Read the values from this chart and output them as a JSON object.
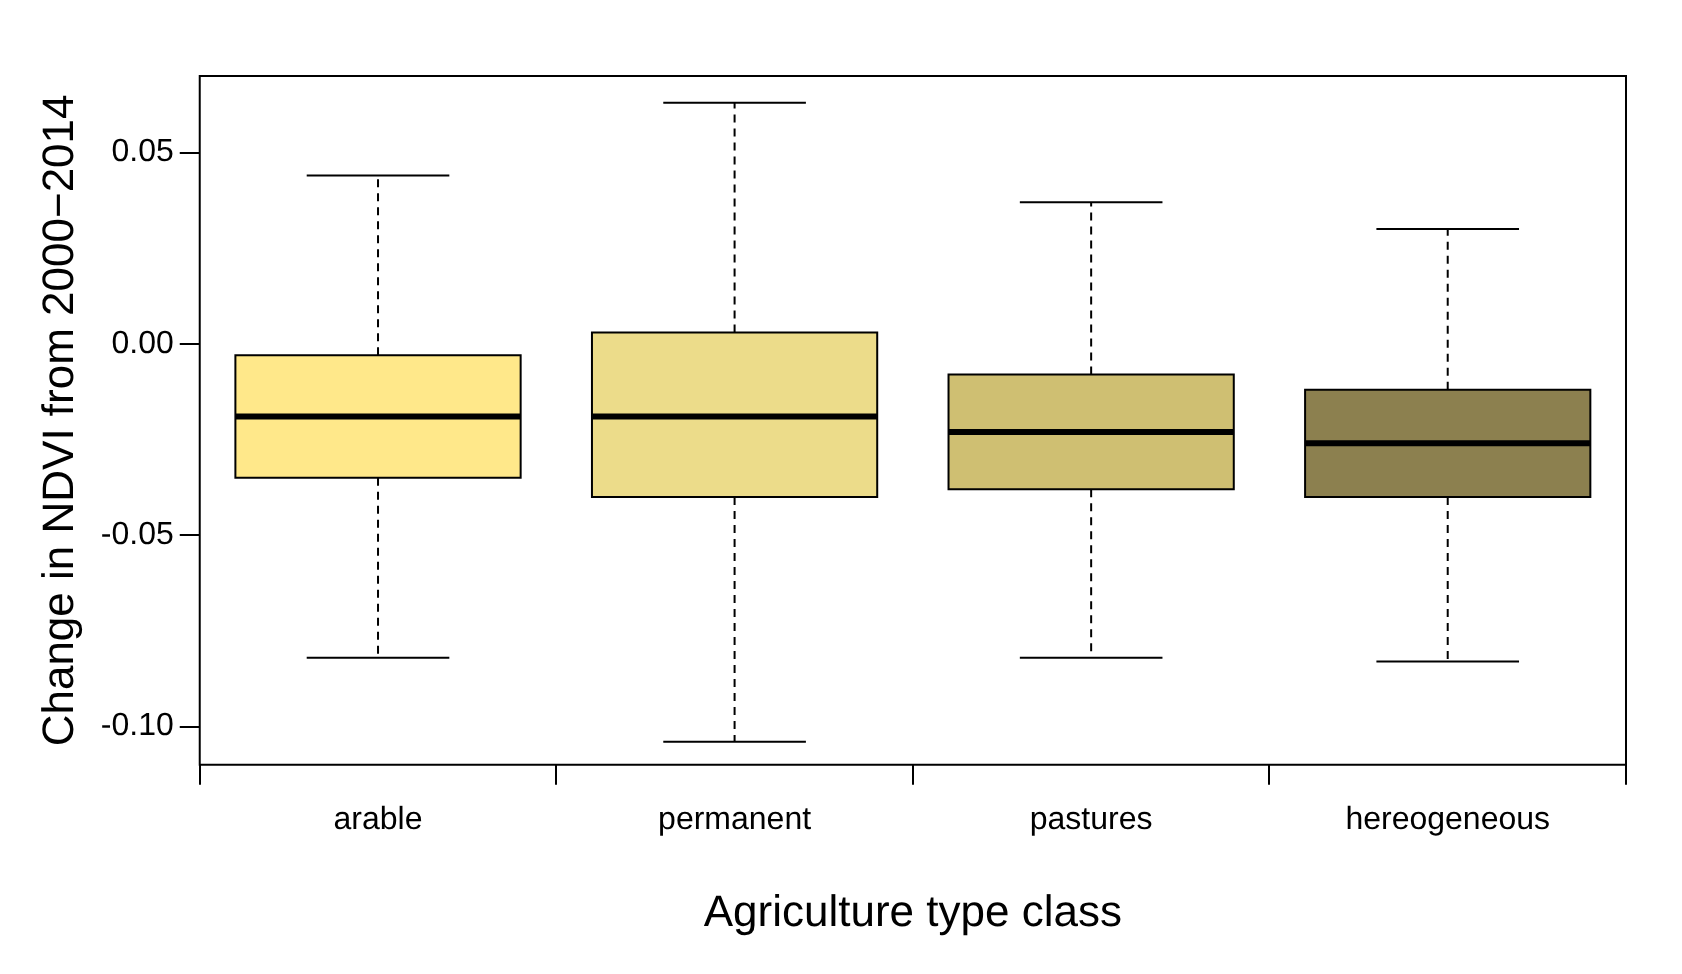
{
  "chart_data": {
    "type": "box",
    "xlabel": "Agriculture type class",
    "ylabel": "Change in NDVI from 2000−2014",
    "categories": [
      "arable",
      "permanent",
      "pastures",
      "hereogeneous"
    ],
    "colors": [
      "#ffe88a",
      "#ecdc8a",
      "#cfbf72",
      "#8c804f"
    ],
    "boxes": [
      {
        "low": -0.082,
        "q1": -0.035,
        "median": -0.019,
        "q3": -0.003,
        "high": 0.044
      },
      {
        "low": -0.104,
        "q1": -0.04,
        "median": -0.019,
        "q3": 0.003,
        "high": 0.063
      },
      {
        "low": -0.082,
        "q1": -0.038,
        "median": -0.023,
        "q3": -0.008,
        "high": 0.037
      },
      {
        "low": -0.083,
        "q1": -0.04,
        "median": -0.026,
        "q3": -0.012,
        "high": 0.03
      }
    ],
    "ylim": [
      -0.11,
      0.07
    ],
    "yticks": [
      {
        "value": -0.1,
        "label": "-0.10"
      },
      {
        "value": -0.05,
        "label": "-0.05"
      },
      {
        "value": 0,
        "label": "0.00"
      },
      {
        "value": 0.05,
        "label": "0.05"
      }
    ],
    "grid": false,
    "legend": false
  }
}
